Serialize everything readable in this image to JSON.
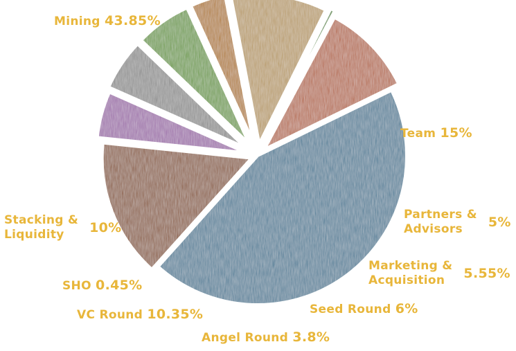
{
  "chart_data": {
    "type": "pie",
    "title": "",
    "slices": [
      {
        "name": "Mining",
        "value": 43.85,
        "value_label": "43.85%",
        "color": "#4f7d97"
      },
      {
        "name": "Team",
        "value": 15,
        "value_label": "15%",
        "color": "#8a5a3e"
      },
      {
        "name": "Partners &\nAdvisors",
        "value": 5,
        "value_label": "5%",
        "color": "#9b6aa8"
      },
      {
        "name": "Marketing &\nAcquisition",
        "value": 5.55,
        "value_label": "5.55%",
        "color": "#8c8c8c"
      },
      {
        "name": "Seed Round",
        "value": 6,
        "value_label": "6%",
        "color": "#6a9a45"
      },
      {
        "name": "Angel Round",
        "value": 3.8,
        "value_label": "3.8%",
        "color": "#b07a2e"
      },
      {
        "name": "VC Round",
        "value": 10.35,
        "value_label": "10.35%",
        "color": "#b79a66"
      },
      {
        "name": "SHO",
        "value": 0.45,
        "value_label": "0.45%",
        "color": "#5c8a4a"
      },
      {
        "name": "Stacking &\nLiquidity",
        "value": 10,
        "value_label": "10%",
        "color": "#b56a4e"
      }
    ],
    "legend": "none",
    "label_placement": "outside"
  }
}
